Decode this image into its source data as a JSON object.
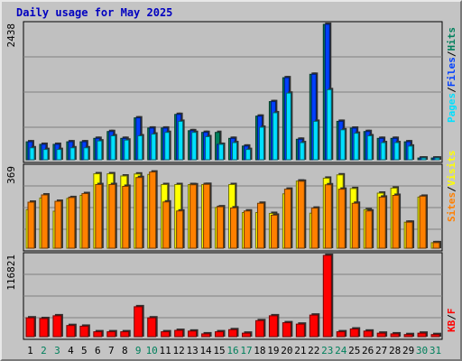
{
  "title": "Daily usage for May 2025",
  "colors": {
    "background": "#c4c4c4",
    "panel": "#c0c0c0",
    "title": "#0000c0",
    "hits": "#00805c",
    "files": "#0040ff",
    "pages": "#00e0ff",
    "visits": "#ffff00",
    "sites": "#ff8000",
    "kbytes": "#ff0000",
    "weekend_day": "#00805c",
    "weekday": "#000000"
  },
  "chart_data": [
    {
      "type": "bar",
      "name": "hits-files-pages",
      "categories": [
        "1",
        "2",
        "3",
        "4",
        "5",
        "6",
        "7",
        "8",
        "9",
        "10",
        "11",
        "12",
        "13",
        "14",
        "15",
        "16",
        "17",
        "18",
        "19",
        "20",
        "21",
        "22",
        "23",
        "24",
        "25",
        "26",
        "27",
        "28",
        "29",
        "30",
        "31"
      ],
      "ymax_label": "2438",
      "ylim": [
        0,
        2438
      ],
      "series": [
        {
          "name": "Hits",
          "values": [
            323,
            277,
            277,
            323,
            323,
            385,
            508,
            385,
            754,
            570,
            570,
            816,
            523,
            492,
            492,
            385,
            246,
            785,
            1047,
            1477,
            369,
            1539,
            2438,
            692,
            569,
            508,
            385,
            385,
            323,
            31,
            31
          ]
        },
        {
          "name": "Files",
          "values": [
            323,
            277,
            277,
            323,
            323,
            385,
            508,
            385,
            754,
            570,
            570,
            816,
            523,
            492,
            277,
            385,
            246,
            785,
            1047,
            1477,
            369,
            1539,
            2438,
            692,
            569,
            508,
            385,
            385,
            323,
            31,
            31
          ]
        },
        {
          "name": "Pages",
          "values": [
            215,
            185,
            185,
            215,
            215,
            339,
            431,
            354,
            431,
            462,
            492,
            692,
            492,
            415,
            277,
            308,
            185,
            585,
            846,
            1200,
            308,
            692,
            1262,
            539,
            477,
            431,
            308,
            308,
            246,
            31,
            31
          ]
        }
      ]
    },
    {
      "type": "bar",
      "name": "visits-sites",
      "categories": [
        "1",
        "2",
        "3",
        "4",
        "5",
        "6",
        "7",
        "8",
        "9",
        "10",
        "11",
        "12",
        "13",
        "14",
        "15",
        "16",
        "17",
        "18",
        "19",
        "20",
        "21",
        "22",
        "23",
        "24",
        "25",
        "26",
        "27",
        "28",
        "29",
        "30",
        "31"
      ],
      "ymax_label": "369",
      "ylim": [
        0,
        369
      ],
      "series": [
        {
          "name": "Visits",
          "values": [
            175,
            228,
            168,
            226,
            240,
            338,
            338,
            328,
            337,
            335,
            289,
            289,
            289,
            289,
            185,
            289,
            162,
            162,
            158,
            247,
            305,
            159,
            318,
            333,
            271,
            175,
            250,
            273,
            118,
            232,
            25
          ]
        },
        {
          "name": "Sites",
          "values": [
            209,
            242,
            213,
            230,
            248,
            289,
            289,
            281,
            321,
            346,
            210,
            169,
            288,
            290,
            188,
            183,
            169,
            204,
            150,
            268,
            304,
            182,
            288,
            268,
            204,
            169,
            232,
            240,
            118,
            236,
            25
          ]
        }
      ]
    },
    {
      "type": "bar",
      "name": "kbytes",
      "categories": [
        "1",
        "2",
        "3",
        "4",
        "5",
        "6",
        "7",
        "8",
        "9",
        "10",
        "11",
        "12",
        "13",
        "14",
        "15",
        "16",
        "17",
        "18",
        "19",
        "20",
        "21",
        "22",
        "23",
        "24",
        "25",
        "26",
        "27",
        "28",
        "29",
        "30",
        "31"
      ],
      "ymax_label": "116821",
      "ylim": [
        0,
        116821
      ],
      "series": [
        {
          "name": "KB",
          "values": [
            27000,
            26000,
            30000,
            16000,
            15000,
            7000,
            7000,
            7000,
            43000,
            27000,
            7000,
            9000,
            8000,
            4000,
            7000,
            10000,
            5000,
            23000,
            30000,
            20000,
            18000,
            31000,
            116821,
            7000,
            11000,
            8000,
            5000,
            4000,
            3000,
            5000,
            3000
          ]
        }
      ]
    }
  ],
  "side_labels": {
    "top": [
      "Pages",
      "Files",
      "Hits"
    ],
    "middle": [
      "Sites",
      "Visits"
    ],
    "bottom": [
      "KB",
      "F"
    ],
    "separator": "/"
  }
}
